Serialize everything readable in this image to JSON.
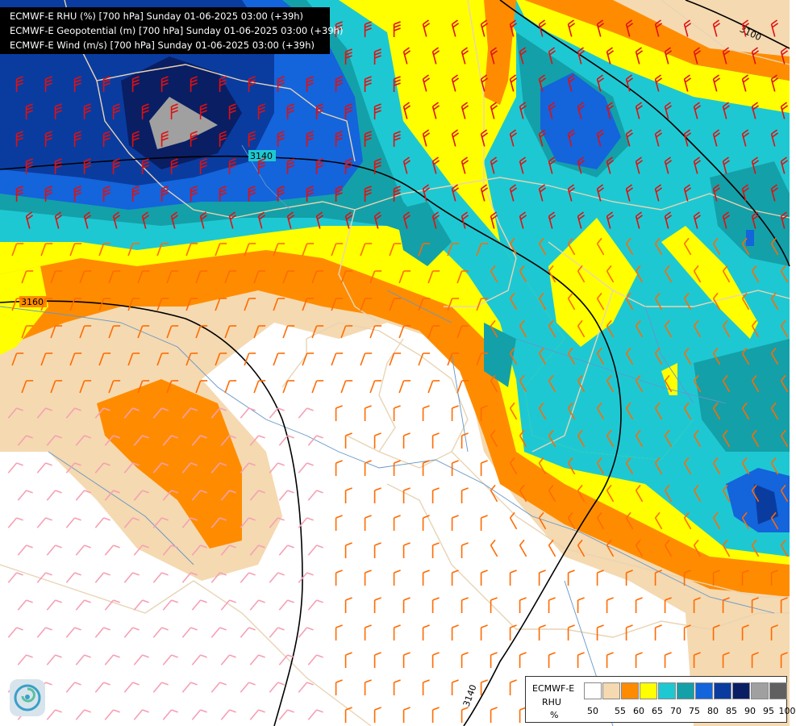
{
  "titles": [
    "ECMWF-E RHU (%) [700 hPa] Sunday 01-06-2025 03:00 (+39h)",
    "ECMWF-E Geopotential (m) [700 hPa] Sunday 01-06-2025 03:00 (+39h)",
    "ECMWF-E Wind (m/s) [700 hPa] Sunday 01-06-2025 03:00 (+39h)"
  ],
  "contour_labels": [
    "3100",
    "3140",
    "3160",
    "3140"
  ],
  "legend": {
    "model": "ECMWF-E",
    "variable": "RHU",
    "unit": "%",
    "ticks": [
      "50",
      "55",
      "60",
      "65",
      "70",
      "75",
      "80",
      "85",
      "90",
      "95",
      "100"
    ],
    "colors": [
      "#ffffff",
      "#f5d9b0",
      "#ff8c00",
      "#ffff00",
      "#1ec8d2",
      "#14a0a8",
      "#1464dc",
      "#0a3ca0",
      "#0a1e64",
      "#a0a0a0",
      "#606060"
    ]
  },
  "colors": {
    "country_border": "#e8d4b4",
    "river": "#6496c8",
    "contour": "#000000",
    "wind_strong": "#e01010",
    "wind_medium": "#ff6a00",
    "wind_weak": "#f5a0b4"
  },
  "logo": "ecmwf-swirl-logo"
}
